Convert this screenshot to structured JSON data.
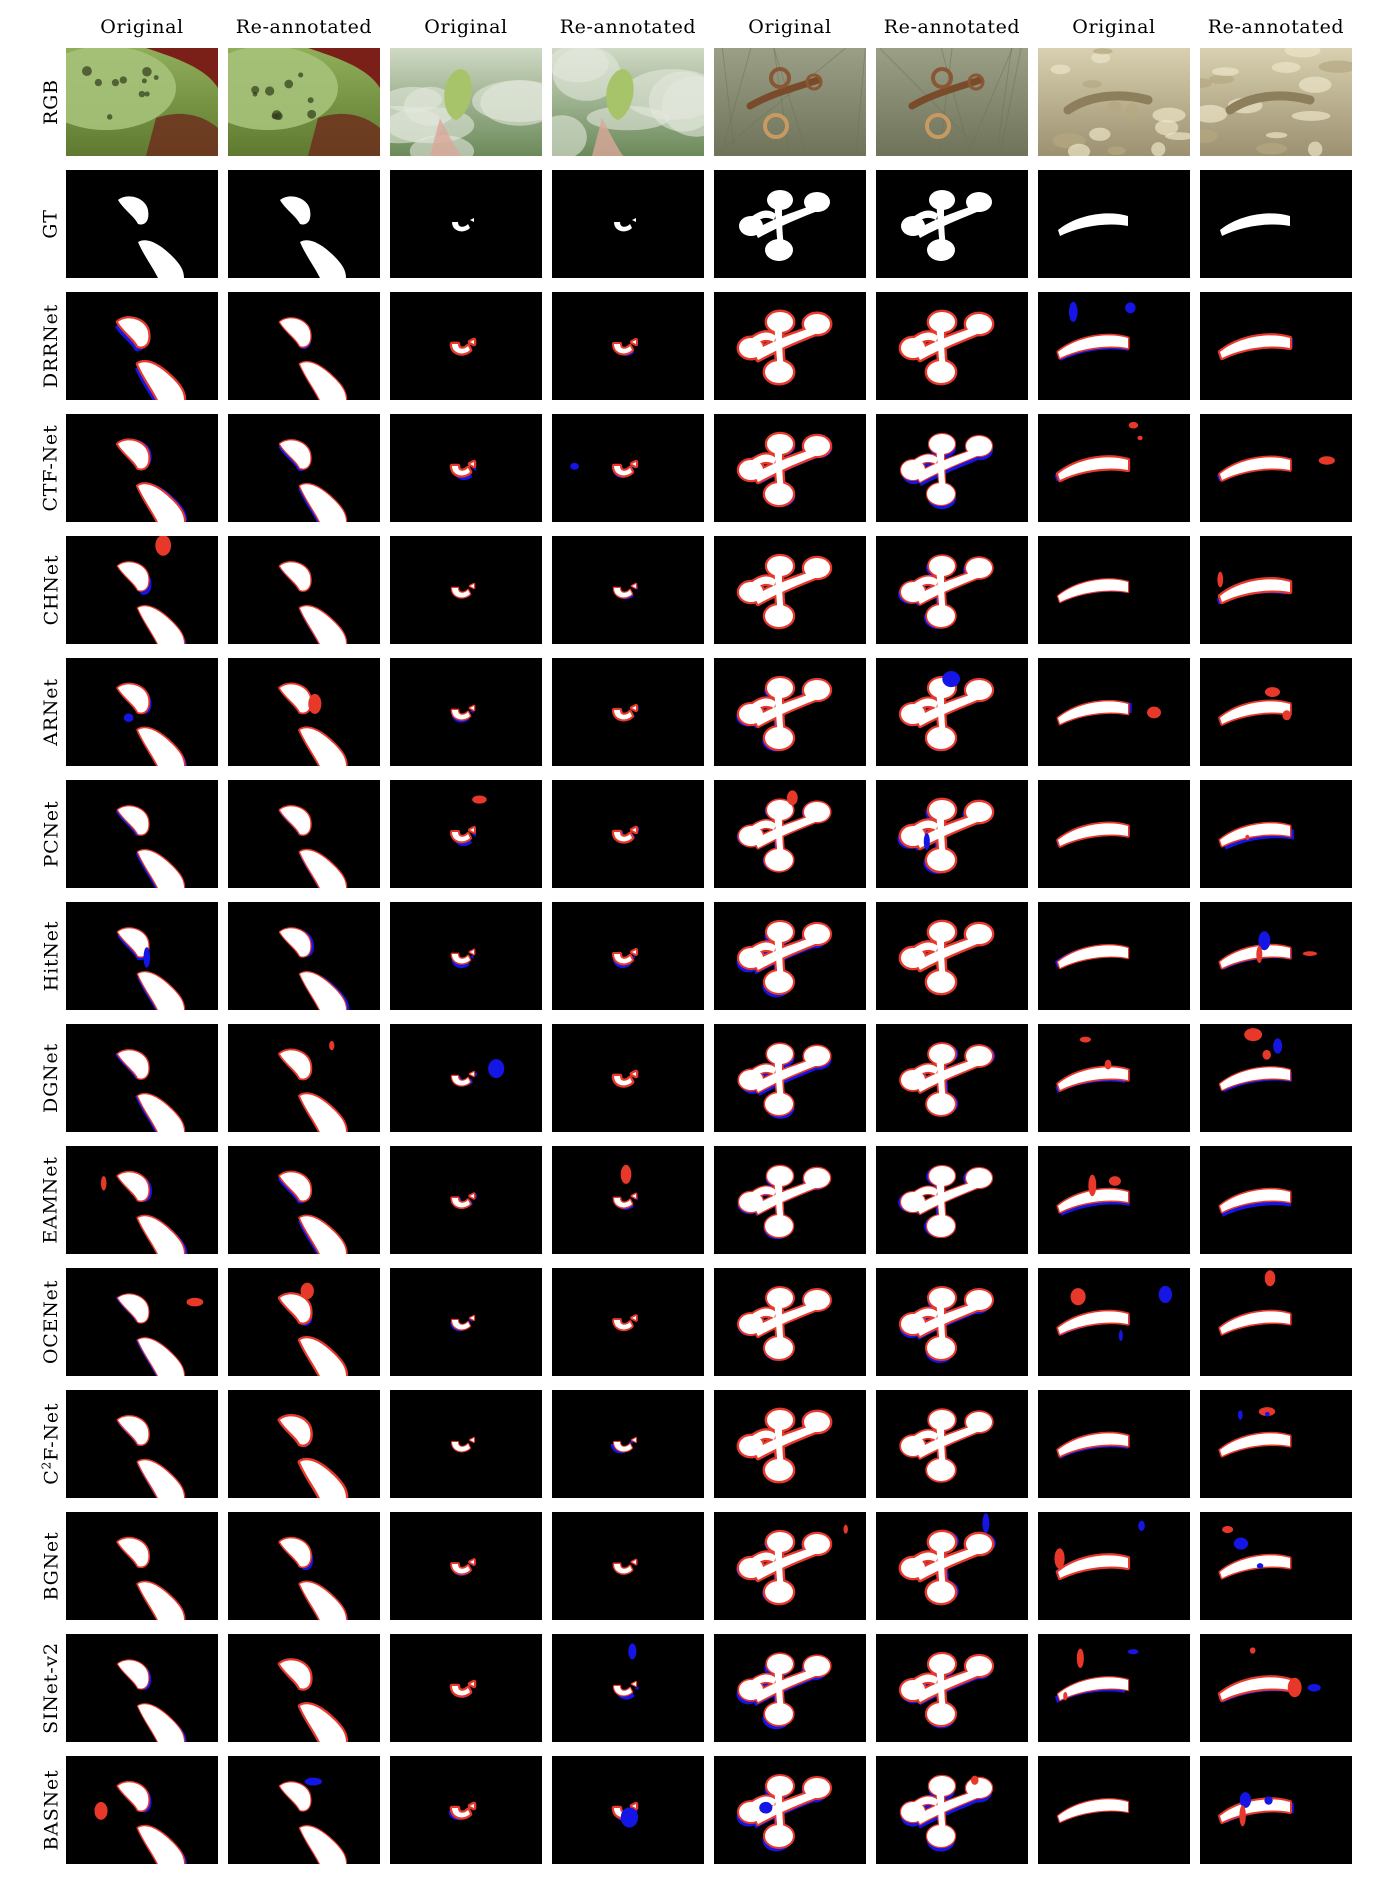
{
  "column_headers": [
    "Original",
    "Re-annotated",
    "Original",
    "Re-annotated",
    "Original",
    "Re-annotated",
    "Original",
    "Re-annotated"
  ],
  "row_labels": [
    {
      "base": "RGB",
      "sup": "",
      "rest": ""
    },
    {
      "base": "GT",
      "sup": "",
      "rest": ""
    },
    {
      "base": "DRRNet",
      "sup": "",
      "rest": ""
    },
    {
      "base": "CTF-Net",
      "sup": "",
      "rest": ""
    },
    {
      "base": "CHNet",
      "sup": "",
      "rest": ""
    },
    {
      "base": "ARNet",
      "sup": "",
      "rest": ""
    },
    {
      "base": "PCNet",
      "sup": "",
      "rest": ""
    },
    {
      "base": "HitNet",
      "sup": "",
      "rest": ""
    },
    {
      "base": "DGNet",
      "sup": "",
      "rest": ""
    },
    {
      "base": "EAMNet",
      "sup": "",
      "rest": ""
    },
    {
      "base": "OCENet",
      "sup": "",
      "rest": ""
    },
    {
      "base": "C",
      "sup": "2",
      "rest": "F-Net"
    },
    {
      "base": "BGNet",
      "sup": "",
      "rest": ""
    },
    {
      "base": "SINet-v2",
      "sup": "",
      "rest": ""
    },
    {
      "base": "BASNet",
      "sup": "",
      "rest": ""
    }
  ],
  "colors": {
    "background": "#000000",
    "foreground": "#ffffff",
    "false_positive": "#e8382a",
    "false_negative": "#1515e6"
  }
}
